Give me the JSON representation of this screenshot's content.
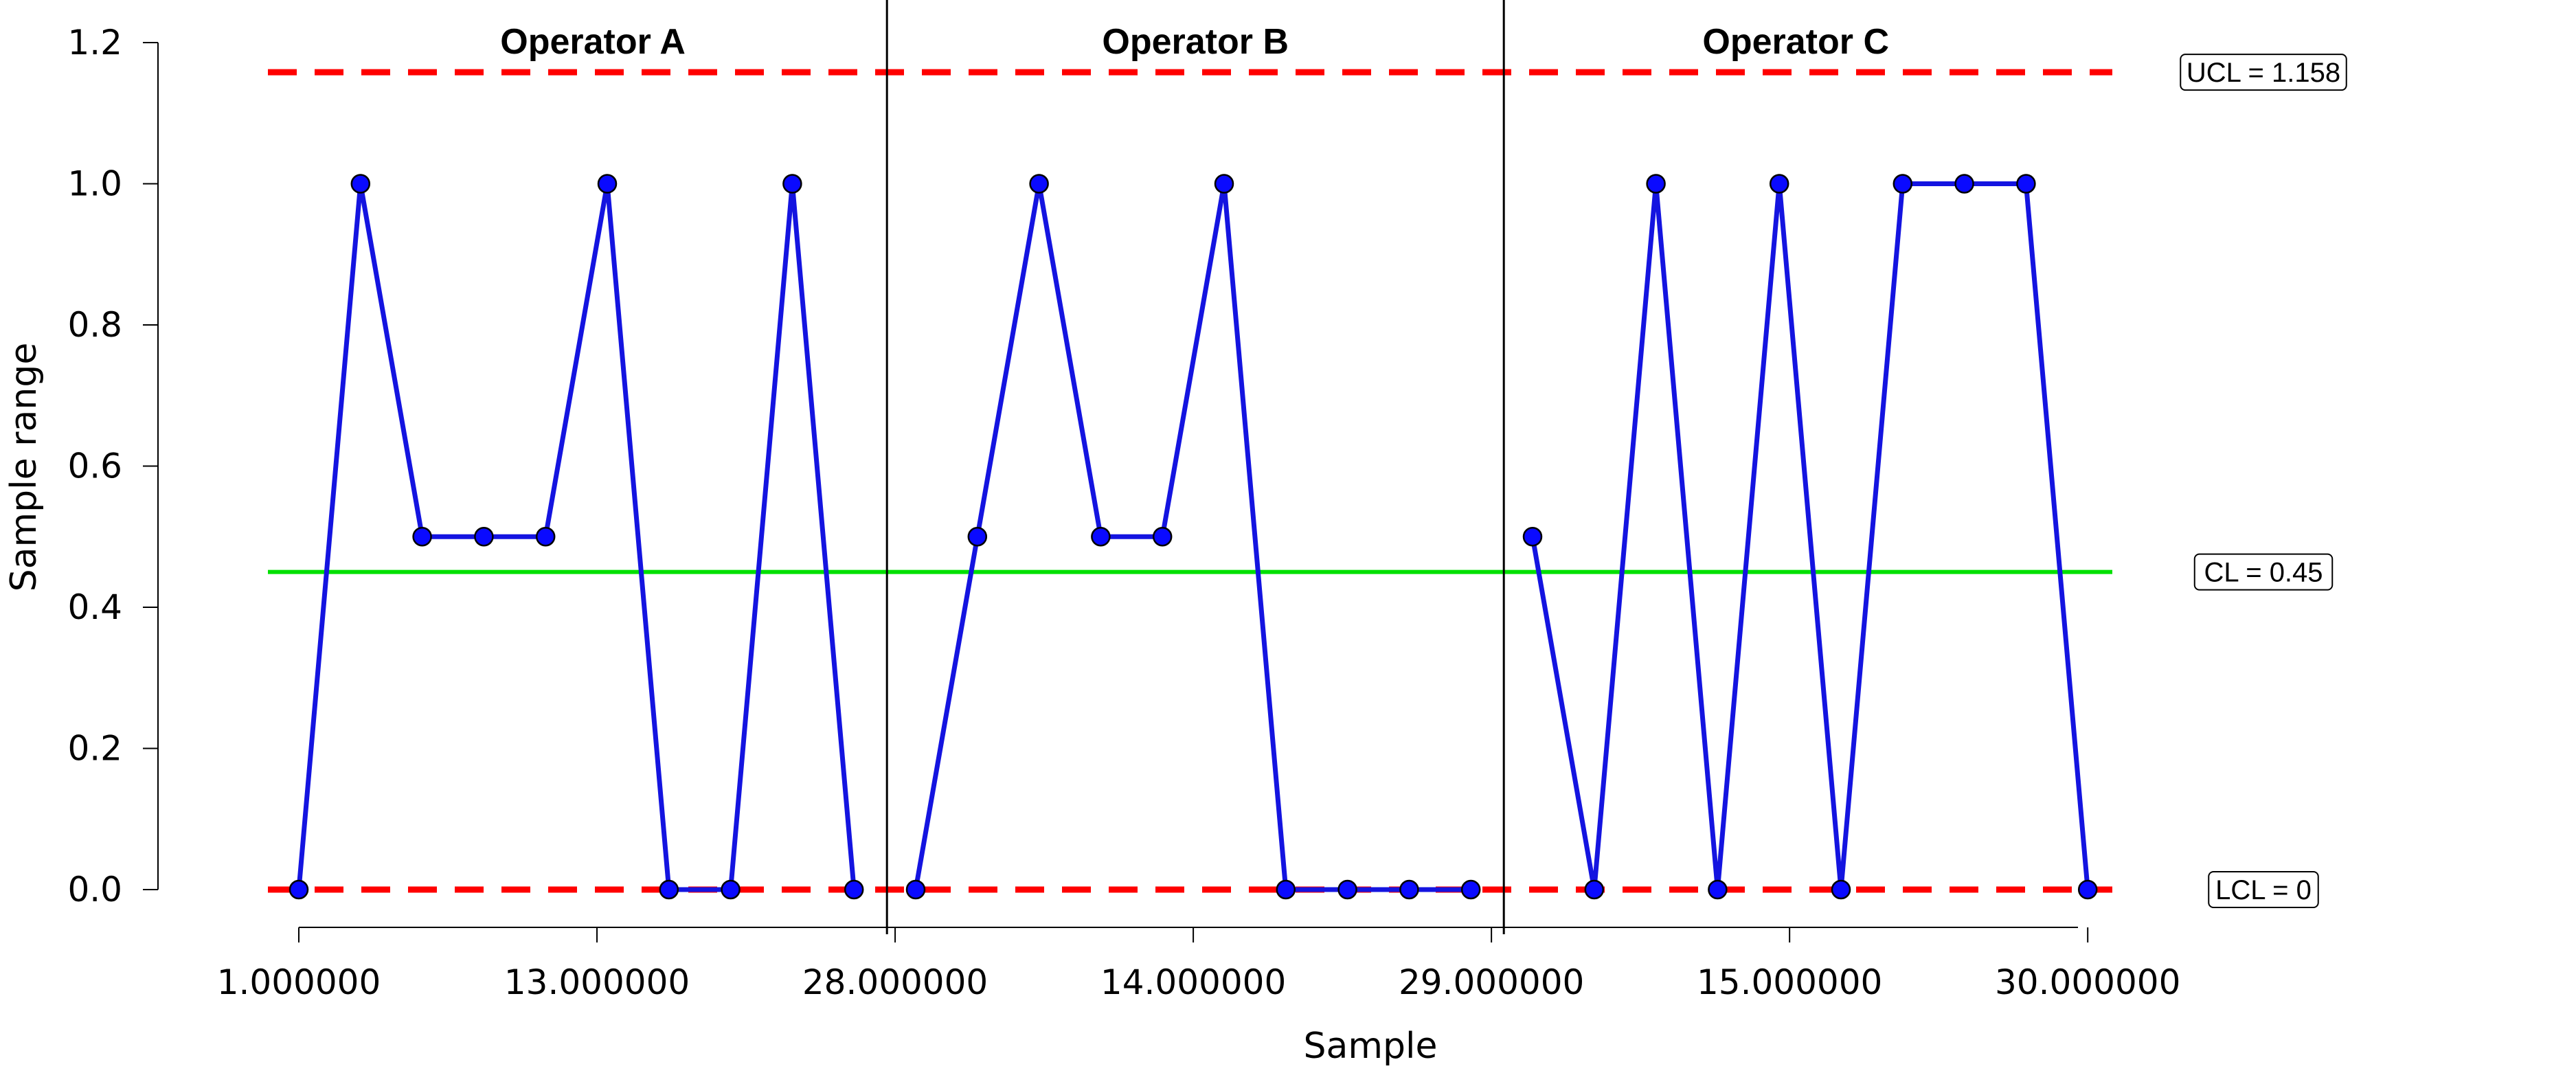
{
  "chart_data": {
    "type": "line",
    "title": "",
    "xlabel": "Sample",
    "ylabel": "Sample range",
    "ylim": [
      0,
      1.2
    ],
    "yticks": [
      "0.0",
      "0.2",
      "0.4",
      "0.6",
      "0.8",
      "1.0",
      "1.2"
    ],
    "xtick_labels": [
      "1.000000",
      "13.000000",
      "28.000000",
      "14.000000",
      "29.000000",
      "15.000000",
      "30.000000"
    ],
    "groups": [
      {
        "label": "Operator A",
        "values": [
          0,
          1,
          0.5,
          0.5,
          0.5,
          1,
          0,
          0,
          1,
          0
        ]
      },
      {
        "label": "Operator B",
        "values": [
          0,
          0.5,
          1,
          0.5,
          0.5,
          1,
          0,
          0,
          0,
          0
        ]
      },
      {
        "label": "Operator C",
        "values": [
          0.5,
          0,
          1,
          0,
          1,
          0,
          1,
          1,
          1,
          0
        ]
      }
    ],
    "limits": {
      "ucl": {
        "value": 1.158,
        "label": "UCL = 1.158",
        "color": "#ff0000"
      },
      "cl": {
        "value": 0.45,
        "label": "CL = 0.45",
        "color": "#00e000"
      },
      "lcl": {
        "value": 0,
        "label": "LCL = 0",
        "color": "#ff0000"
      }
    },
    "series_color": "#1414e0",
    "grid": false,
    "legend": "none"
  }
}
